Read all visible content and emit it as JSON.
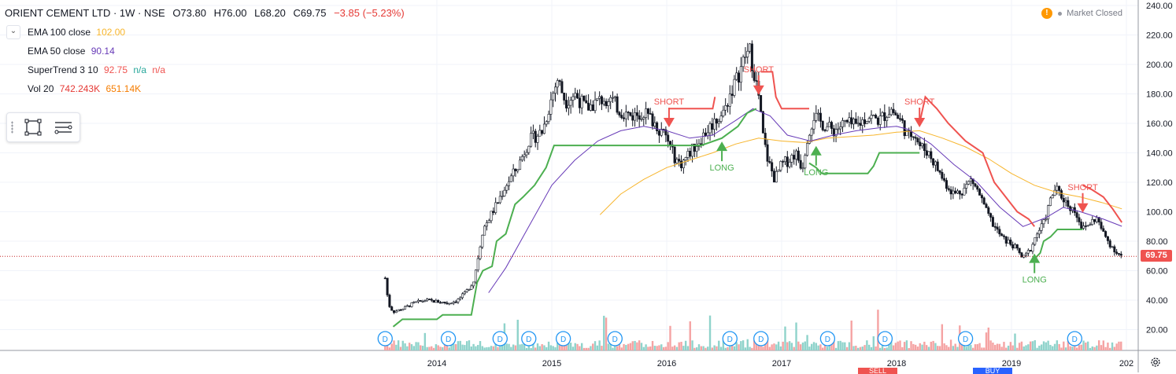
{
  "symbol": {
    "title": "ORIENT CEMENT LTD · 1W · NSE",
    "open": "O73.80",
    "high": "H76.00",
    "low": "L68.20",
    "close": "C69.75",
    "change": "−3.85 (−5.23%)"
  },
  "indicators": [
    {
      "name": "EMA 100 close",
      "values": [
        "102.00"
      ],
      "colors": [
        "#f7b52c"
      ]
    },
    {
      "name": "EMA 50 close",
      "values": [
        "90.14"
      ],
      "colors": [
        "#673ab7"
      ]
    },
    {
      "name": "SuperTrend 3 10",
      "values": [
        "92.75",
        "n/a",
        "n/a"
      ],
      "colors": [
        "#ef5350",
        "#26a69a",
        "#ef5350"
      ]
    },
    {
      "name": "Vol 20",
      "values": [
        "742.243K",
        "651.14K"
      ],
      "colors": [
        "#e53935",
        "#f57c00"
      ]
    }
  ],
  "market_status": "Market Closed",
  "last_price_label": "69.75",
  "bottom_buttons": [
    "SELL",
    "BUY"
  ],
  "icons": {
    "collapse": "chevron-down-icon",
    "rectangle_tool": "rectangle-icon",
    "list_tool": "list-icon",
    "settings": "gear-icon",
    "warning": "warning-icon"
  },
  "colors": {
    "up": "#26a69a",
    "down": "#ef5350",
    "candle_body_up": "#ffffff",
    "candle_border": "#131722",
    "supertrend_up": "#4caf50",
    "supertrend_down": "#ef5350",
    "ema100": "#f7b52c",
    "ema50": "#673ab7",
    "last_price_line": "#c62828",
    "grid": "#f0f3fa"
  },
  "chart_data": {
    "type": "candlestick",
    "y_ticks": [
      "240.00",
      "220.00",
      "200.00",
      "180.00",
      "160.00",
      "140.00",
      "120.00",
      "100.00",
      "80.00",
      "60.00",
      "40.00",
      "20.00"
    ],
    "ylim": [
      0,
      240
    ],
    "x_ticks": [
      "2014",
      "2015",
      "2016",
      "2017",
      "2018",
      "2019",
      "202"
    ],
    "last_price": 69.75,
    "price_path": [
      [
        2013.55,
        55
      ],
      [
        2013.58,
        37
      ],
      [
        2013.62,
        32
      ],
      [
        2013.7,
        34
      ],
      [
        2013.8,
        38
      ],
      [
        2013.9,
        40
      ],
      [
        2014.0,
        39
      ],
      [
        2014.1,
        38
      ],
      [
        2014.18,
        40
      ],
      [
        2014.25,
        45
      ],
      [
        2014.32,
        53
      ],
      [
        2014.36,
        70
      ],
      [
        2014.4,
        88
      ],
      [
        2014.45,
        95
      ],
      [
        2014.52,
        105
      ],
      [
        2014.6,
        118
      ],
      [
        2014.7,
        130
      ],
      [
        2014.8,
        148
      ],
      [
        2014.92,
        155
      ],
      [
        2015.0,
        178
      ],
      [
        2015.05,
        190
      ],
      [
        2015.12,
        175
      ],
      [
        2015.2,
        180
      ],
      [
        2015.3,
        170
      ],
      [
        2015.4,
        175
      ],
      [
        2015.5,
        178
      ],
      [
        2015.6,
        168
      ],
      [
        2015.7,
        165
      ],
      [
        2015.8,
        168
      ],
      [
        2015.9,
        160
      ],
      [
        2016.0,
        150
      ],
      [
        2016.06,
        138
      ],
      [
        2016.12,
        132
      ],
      [
        2016.2,
        140
      ],
      [
        2016.3,
        150
      ],
      [
        2016.4,
        160
      ],
      [
        2016.5,
        168
      ],
      [
        2016.55,
        180
      ],
      [
        2016.62,
        192
      ],
      [
        2016.68,
        205
      ],
      [
        2016.72,
        210
      ],
      [
        2016.76,
        195
      ],
      [
        2016.8,
        178
      ],
      [
        2016.84,
        150
      ],
      [
        2016.88,
        135
      ],
      [
        2016.94,
        122
      ],
      [
        2017.0,
        132
      ],
      [
        2017.06,
        135
      ],
      [
        2017.12,
        140
      ],
      [
        2017.18,
        130
      ],
      [
        2017.22,
        150
      ],
      [
        2017.28,
        165
      ],
      [
        2017.35,
        160
      ],
      [
        2017.45,
        155
      ],
      [
        2017.55,
        160
      ],
      [
        2017.65,
        158
      ],
      [
        2017.75,
        165
      ],
      [
        2017.85,
        162
      ],
      [
        2017.95,
        170
      ],
      [
        2018.0,
        165
      ],
      [
        2018.05,
        160
      ],
      [
        2018.1,
        150
      ],
      [
        2018.15,
        155
      ],
      [
        2018.2,
        145
      ],
      [
        2018.28,
        140
      ],
      [
        2018.35,
        130
      ],
      [
        2018.42,
        120
      ],
      [
        2018.5,
        112
      ],
      [
        2018.58,
        115
      ],
      [
        2018.65,
        122
      ],
      [
        2018.72,
        112
      ],
      [
        2018.78,
        100
      ],
      [
        2018.85,
        90
      ],
      [
        2018.92,
        82
      ],
      [
        2019.0,
        78
      ],
      [
        2019.05,
        74
      ],
      [
        2019.1,
        68
      ],
      [
        2019.16,
        74
      ],
      [
        2019.22,
        85
      ],
      [
        2019.28,
        92
      ],
      [
        2019.34,
        108
      ],
      [
        2019.38,
        116
      ],
      [
        2019.44,
        110
      ],
      [
        2019.5,
        104
      ],
      [
        2019.56,
        100
      ],
      [
        2019.62,
        88
      ],
      [
        2019.68,
        92
      ],
      [
        2019.74,
        96
      ],
      [
        2019.8,
        85
      ],
      [
        2019.86,
        78
      ],
      [
        2019.92,
        72
      ],
      [
        2019.96,
        69.75
      ]
    ],
    "ema100": [
      [
        2015.42,
        98
      ],
      [
        2015.6,
        112
      ],
      [
        2015.8,
        122
      ],
      [
        2016.0,
        130
      ],
      [
        2016.2,
        135
      ],
      [
        2016.4,
        140
      ],
      [
        2016.6,
        146
      ],
      [
        2016.8,
        150
      ],
      [
        2017.0,
        148
      ],
      [
        2017.2,
        147
      ],
      [
        2017.4,
        150
      ],
      [
        2017.6,
        151
      ],
      [
        2017.8,
        152
      ],
      [
        2018.0,
        154
      ],
      [
        2018.2,
        155
      ],
      [
        2018.4,
        150
      ],
      [
        2018.6,
        144
      ],
      [
        2018.8,
        136
      ],
      [
        2019.0,
        126
      ],
      [
        2019.2,
        118
      ],
      [
        2019.4,
        113
      ],
      [
        2019.6,
        110
      ],
      [
        2019.8,
        106
      ],
      [
        2019.96,
        102
      ]
    ],
    "ema50": [
      [
        2014.45,
        45
      ],
      [
        2014.6,
        62
      ],
      [
        2014.8,
        90
      ],
      [
        2015.0,
        118
      ],
      [
        2015.2,
        135
      ],
      [
        2015.4,
        148
      ],
      [
        2015.6,
        155
      ],
      [
        2015.8,
        158
      ],
      [
        2016.0,
        155
      ],
      [
        2016.2,
        150
      ],
      [
        2016.4,
        152
      ],
      [
        2016.6,
        162
      ],
      [
        2016.75,
        170
      ],
      [
        2016.9,
        165
      ],
      [
        2017.05,
        152
      ],
      [
        2017.25,
        148
      ],
      [
        2017.45,
        152
      ],
      [
        2017.65,
        155
      ],
      [
        2017.85,
        157
      ],
      [
        2018.0,
        158
      ],
      [
        2018.1,
        156
      ],
      [
        2018.3,
        146
      ],
      [
        2018.5,
        132
      ],
      [
        2018.7,
        120
      ],
      [
        2018.9,
        103
      ],
      [
        2019.1,
        90
      ],
      [
        2019.3,
        96
      ],
      [
        2019.45,
        103
      ],
      [
        2019.6,
        100
      ],
      [
        2019.8,
        95
      ],
      [
        2019.96,
        90.14
      ]
    ],
    "supertrend_up": [
      [
        2013.62,
        22
      ],
      [
        2013.7,
        27
      ],
      [
        2014.0,
        27
      ],
      [
        2014.05,
        30
      ],
      [
        2014.3,
        30
      ],
      [
        2014.35,
        52
      ],
      [
        2014.4,
        60
      ],
      [
        2014.48,
        63
      ],
      [
        2014.52,
        80
      ],
      [
        2014.6,
        85
      ],
      [
        2014.68,
        105
      ],
      [
        2014.75,
        110
      ],
      [
        2014.85,
        118
      ],
      [
        2014.95,
        130
      ],
      [
        2015.02,
        145
      ],
      [
        2016.1,
        145
      ],
      [
        2016.3,
        145
      ],
      [
        2016.48,
        150
      ],
      [
        2016.62,
        158
      ],
      [
        2016.7,
        167
      ],
      [
        2016.78,
        170
      ]
    ],
    "supertrend_up_2": [
      [
        2017.24,
        133
      ],
      [
        2017.3,
        130
      ],
      [
        2017.35,
        126
      ],
      [
        2017.75,
        126
      ],
      [
        2017.8,
        131
      ],
      [
        2017.85,
        140
      ],
      [
        2018.2,
        140
      ]
    ],
    "supertrend_up_3": [
      [
        2019.2,
        68
      ],
      [
        2019.25,
        72
      ],
      [
        2019.28,
        80
      ],
      [
        2019.34,
        83
      ],
      [
        2019.4,
        88
      ],
      [
        2019.62,
        88
      ]
    ],
    "supertrend_down": [
      [
        2016.02,
        170
      ],
      [
        2016.3,
        170
      ],
      [
        2016.4,
        170
      ],
      [
        2016.42,
        178
      ]
    ],
    "supertrend_down_2": [
      [
        2016.82,
        195
      ],
      [
        2016.92,
        195
      ],
      [
        2016.95,
        178
      ],
      [
        2017.0,
        170
      ],
      [
        2017.2,
        170
      ],
      [
        2017.24,
        170
      ]
    ],
    "supertrend_down_3": [
      [
        2018.2,
        160
      ],
      [
        2018.25,
        178
      ],
      [
        2018.35,
        170
      ],
      [
        2018.45,
        160
      ],
      [
        2018.6,
        148
      ],
      [
        2018.75,
        140
      ],
      [
        2018.85,
        120
      ],
      [
        2018.95,
        110
      ],
      [
        2019.05,
        100
      ],
      [
        2019.15,
        95
      ],
      [
        2019.2,
        90
      ]
    ],
    "supertrend_down_4": [
      [
        2019.62,
        118
      ],
      [
        2019.7,
        115
      ],
      [
        2019.8,
        110
      ],
      [
        2019.88,
        102
      ],
      [
        2019.96,
        92.75
      ]
    ],
    "signals": [
      {
        "type": "SHORT",
        "x": 2016.02,
        "price": 160
      },
      {
        "type": "LONG",
        "x": 2016.48,
        "price": 145
      },
      {
        "type": "SHORT",
        "x": 2016.8,
        "price": 182
      },
      {
        "type": "LONG",
        "x": 2017.3,
        "price": 142
      },
      {
        "type": "SHORT",
        "x": 2018.2,
        "price": 160
      },
      {
        "type": "LONG",
        "x": 2019.2,
        "price": 69
      },
      {
        "type": "SHORT",
        "x": 2019.62,
        "price": 102
      }
    ],
    "dividend_markers_x": [
      2013.55,
      2014.1,
      2014.55,
      2014.8,
      2015.1,
      2015.55,
      2016.55,
      2016.82,
      2017.4,
      2017.9,
      2018.6,
      2019.55
    ],
    "dividend_label": "D"
  }
}
